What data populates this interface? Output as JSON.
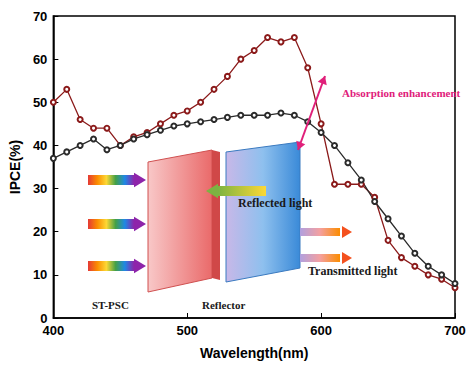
{
  "chart_data": {
    "type": "line",
    "x_label": "Wavelength(nm)",
    "y_label": "IPCE(%)",
    "x": [
      400,
      410,
      420,
      430,
      440,
      450,
      460,
      470,
      480,
      490,
      500,
      510,
      520,
      530,
      540,
      550,
      560,
      570,
      580,
      590,
      600,
      610,
      620,
      630,
      640,
      650,
      660,
      670,
      680,
      690,
      700
    ],
    "series": [
      {
        "color": "#8b1a1a",
        "marker": "open_circle",
        "line_style": "solid",
        "values": [
          50,
          53,
          46,
          44,
          44,
          40,
          42,
          43,
          45,
          47,
          48,
          50,
          53,
          56,
          60,
          62,
          65,
          64,
          65,
          58,
          45,
          31,
          31,
          31,
          28,
          18,
          14,
          12,
          10,
          9,
          7
        ]
      },
      {
        "color": "#2b2b2b",
        "marker": "open_circle",
        "line_style": "solid",
        "values": [
          37,
          38.5,
          40,
          41.5,
          39,
          40,
          41.5,
          42.5,
          43.5,
          44.5,
          45,
          45.5,
          46,
          46.5,
          47,
          47,
          47,
          47.5,
          47,
          45.5,
          43,
          40,
          36,
          32,
          27,
          23,
          19,
          15,
          12,
          10,
          8
        ]
      }
    ],
    "xlim": [
      400,
      700
    ],
    "xticks": [
      400,
      500,
      600,
      700
    ],
    "ylim": [
      0,
      70
    ],
    "yticks": [
      0,
      10,
      20,
      30,
      40,
      50,
      60,
      70
    ],
    "grid": false,
    "annotations": [
      {
        "text": "Absorption enhancement",
        "color": "#e0207a"
      },
      {
        "text": "Reflected light",
        "color": "#1a1a1a"
      },
      {
        "text": "Transmitted light",
        "color": "#1a1a1a"
      },
      {
        "text": "ST-PSC",
        "color": "#1a1a1a"
      },
      {
        "text": "Reflector",
        "color": "#1a1a1a"
      }
    ]
  }
}
